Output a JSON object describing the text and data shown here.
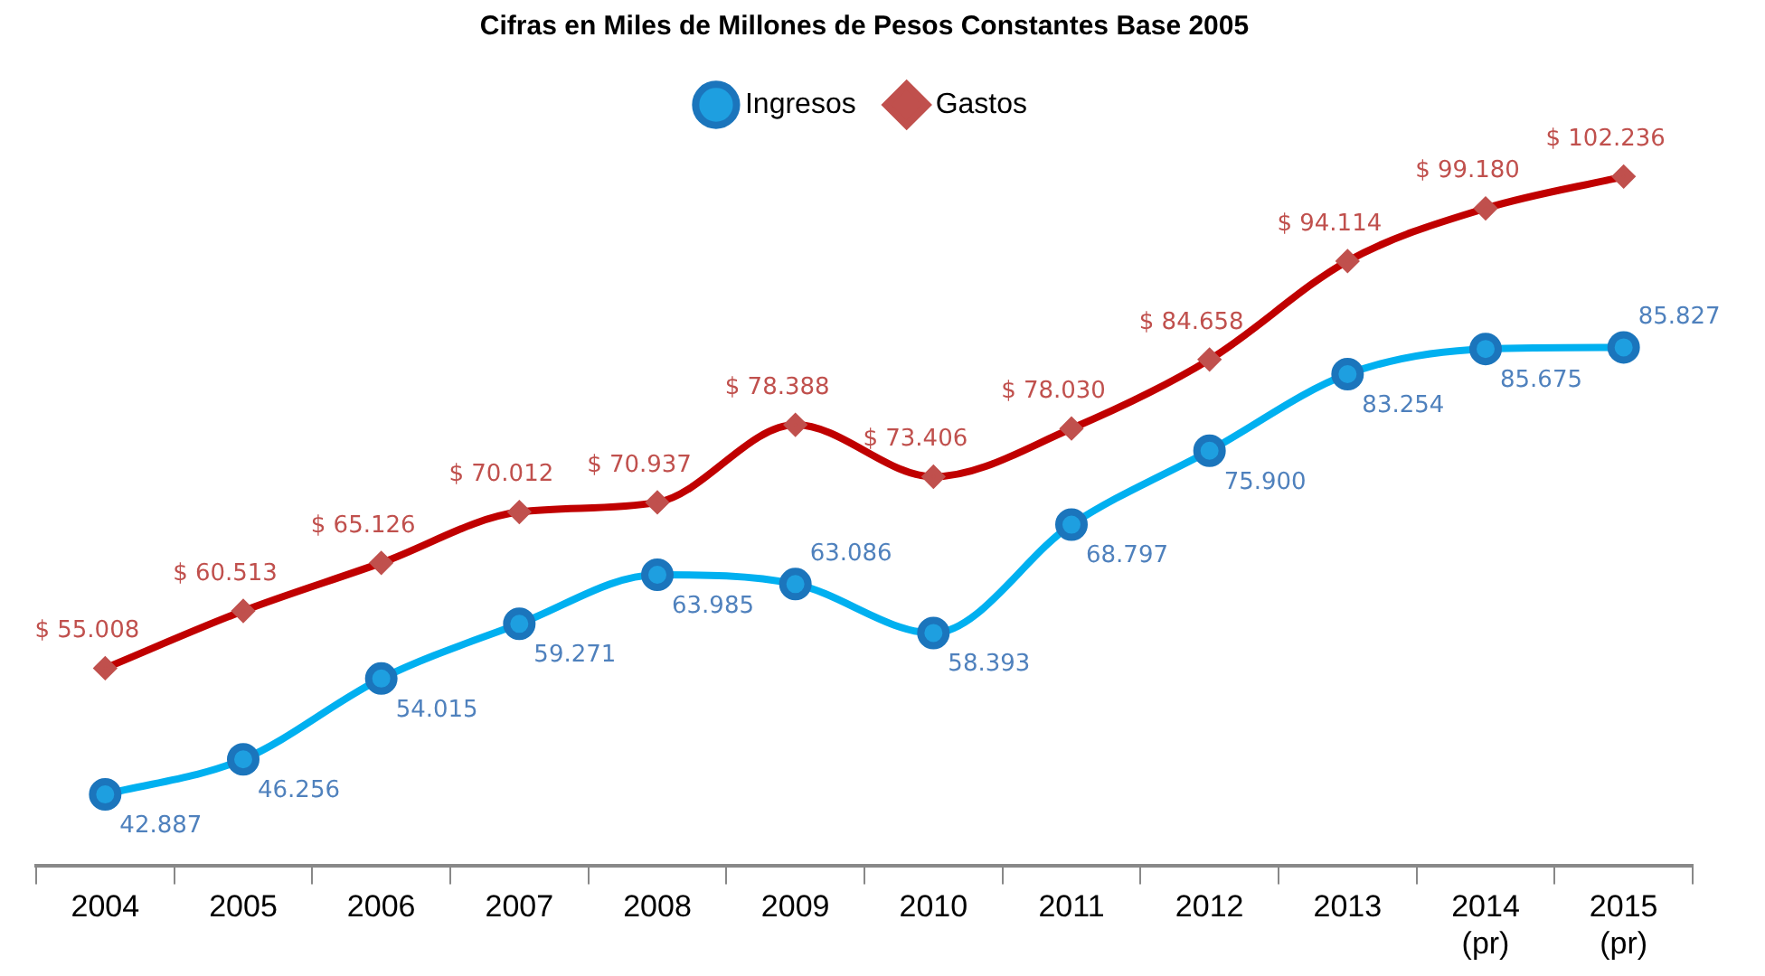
{
  "chart_data": {
    "type": "line",
    "title": "Cifras en Miles de Millones de Pesos Constantes Base 2005",
    "categories": [
      "2004",
      "2005",
      "2006",
      "2007",
      "2008",
      "2009",
      "2010",
      "2011",
      "2012",
      "2013",
      "2014 (pr)",
      "2015 (pr)"
    ],
    "series": [
      {
        "name": "Ingresos",
        "color": "#00b0f0",
        "marker": "circle",
        "values": [
          42887,
          46256,
          54015,
          59271,
          63985,
          63086,
          58393,
          68797,
          75900,
          83254,
          85675,
          85827
        ],
        "value_labels": [
          "42.887",
          "46.256",
          "54.015",
          "59.271",
          "63.985",
          "63.086",
          "58.393",
          "68.797",
          "75.900",
          "83.254",
          "85.675",
          "85.827"
        ]
      },
      {
        "name": "Gastos",
        "color": "#c00000",
        "marker": "diamond",
        "values": [
          55008,
          60513,
          65126,
          70012,
          70937,
          78388,
          73406,
          78030,
          84658,
          94114,
          99180,
          102236
        ],
        "value_labels": [
          "$ 55.008",
          "$ 60.513",
          "$ 65.126",
          "$ 70.012",
          "$ 70.937",
          "$ 78.388",
          "$ 73.406",
          "$ 78.030",
          "$ 84.658",
          "$ 94.114",
          "$ 99.180",
          "$ 102.236"
        ]
      }
    ],
    "legend": "top",
    "grid": false,
    "tick_labels": "x"
  }
}
